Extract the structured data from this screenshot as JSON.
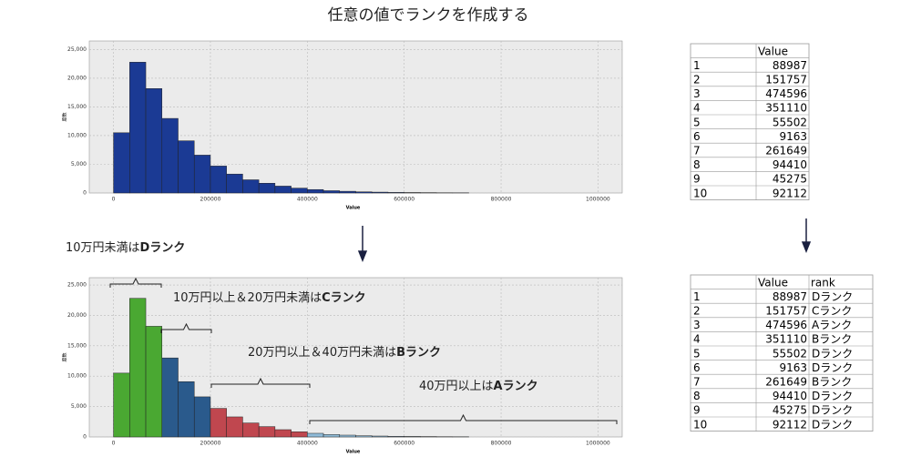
{
  "title": "任意の値でランクを作成する",
  "chart_data": [
    {
      "type": "histogram",
      "x_label": "Value",
      "y_label": "度数",
      "color": "#1b3a94",
      "bins": [
        0,
        33333,
        66667,
        100000,
        133333,
        166667,
        200000,
        233333,
        266667,
        300000,
        333333,
        366667,
        400000,
        433333,
        466667,
        500000,
        533333,
        566667,
        600000,
        633333,
        666667,
        700000,
        733333
      ],
      "values": [
        10500,
        22800,
        18200,
        13000,
        9100,
        6600,
        4700,
        3300,
        2300,
        1700,
        1200,
        850,
        600,
        400,
        300,
        200,
        150,
        100,
        80,
        60,
        40,
        30
      ],
      "xlim": [
        -50000,
        1050000
      ],
      "xticks": [
        0,
        200000,
        400000,
        600000,
        800000,
        1000000
      ],
      "ylim": [
        0,
        26500
      ],
      "yticks": [
        0,
        {
          "value": 5000,
          "label": "5,000"
        },
        {
          "value": 10000,
          "label": "10,000"
        },
        {
          "value": 15000,
          "label": "15,000"
        },
        {
          "value": 20000,
          "label": "20,000"
        },
        {
          "value": 25000,
          "label": "25,000"
        }
      ],
      "grid": true
    },
    {
      "type": "histogram",
      "x_label": "Value",
      "y_label": "度数",
      "colors": [
        "#4aa832",
        "#4aa832",
        "#4aa832",
        "#2a5a8c",
        "#2a5a8c",
        "#2a5a8c",
        "#c0474f",
        "#c0474f",
        "#c0474f",
        "#c0474f",
        "#c0474f",
        "#c0474f",
        "#8fbbd8",
        "#8fbbd8",
        "#8fbbd8",
        "#8fbbd8",
        "#8fbbd8",
        "#8fbbd8",
        "#8fbbd8",
        "#8fbbd8",
        "#8fbbd8",
        "#8fbbd8"
      ],
      "bins": [
        0,
        33333,
        66667,
        100000,
        133333,
        166667,
        200000,
        233333,
        266667,
        300000,
        333333,
        366667,
        400000,
        433333,
        466667,
        500000,
        533333,
        566667,
        600000,
        633333,
        666667,
        700000,
        733333
      ],
      "values": [
        10500,
        22800,
        18200,
        13000,
        9100,
        6600,
        4700,
        3300,
        2300,
        1700,
        1200,
        850,
        600,
        400,
        300,
        200,
        150,
        100,
        80,
        60,
        40,
        30
      ],
      "xlim": [
        -50000,
        1050000
      ],
      "xticks": [
        0,
        200000,
        400000,
        600000,
        800000,
        1000000
      ],
      "ylim": [
        0,
        26200
      ],
      "yticks": [
        0,
        {
          "value": 5000,
          "label": "5,000"
        },
        {
          "value": 10000,
          "label": "10,000"
        },
        {
          "value": 15000,
          "label": "15,000"
        },
        {
          "value": 20000,
          "label": "20,000"
        },
        {
          "value": 25000,
          "label": "25,000"
        }
      ],
      "grid": true,
      "annotations": [
        {
          "text": "10万円未満は",
          "rank": "Dランク"
        },
        {
          "text": "10万円以上＆20万円未満は",
          "rank": "Cランク"
        },
        {
          "text": "20万円以上＆40万円未満は",
          "rank": "Bランク"
        },
        {
          "text": "40万円以上は",
          "rank": "Aランク"
        }
      ]
    }
  ],
  "tables": [
    {
      "header": [
        "Value"
      ],
      "rows": [
        [
          1,
          88987
        ],
        [
          2,
          151757
        ],
        [
          3,
          474596
        ],
        [
          4,
          351110
        ],
        [
          5,
          55502
        ],
        [
          6,
          9163
        ],
        [
          7,
          261649
        ],
        [
          8,
          94410
        ],
        [
          9,
          45275
        ],
        [
          10,
          92112
        ]
      ]
    },
    {
      "header": [
        "Value",
        "rank"
      ],
      "rows": [
        [
          1,
          88987,
          "Dランク"
        ],
        [
          2,
          151757,
          "Cランク"
        ],
        [
          3,
          474596,
          "Aランク"
        ],
        [
          4,
          351110,
          "Bランク"
        ],
        [
          5,
          55502,
          "Dランク"
        ],
        [
          6,
          9163,
          "Dランク"
        ],
        [
          7,
          261649,
          "Bランク"
        ],
        [
          8,
          94410,
          "Dランク"
        ],
        [
          9,
          45275,
          "Dランク"
        ],
        [
          10,
          92112,
          "Dランク"
        ]
      ]
    }
  ]
}
